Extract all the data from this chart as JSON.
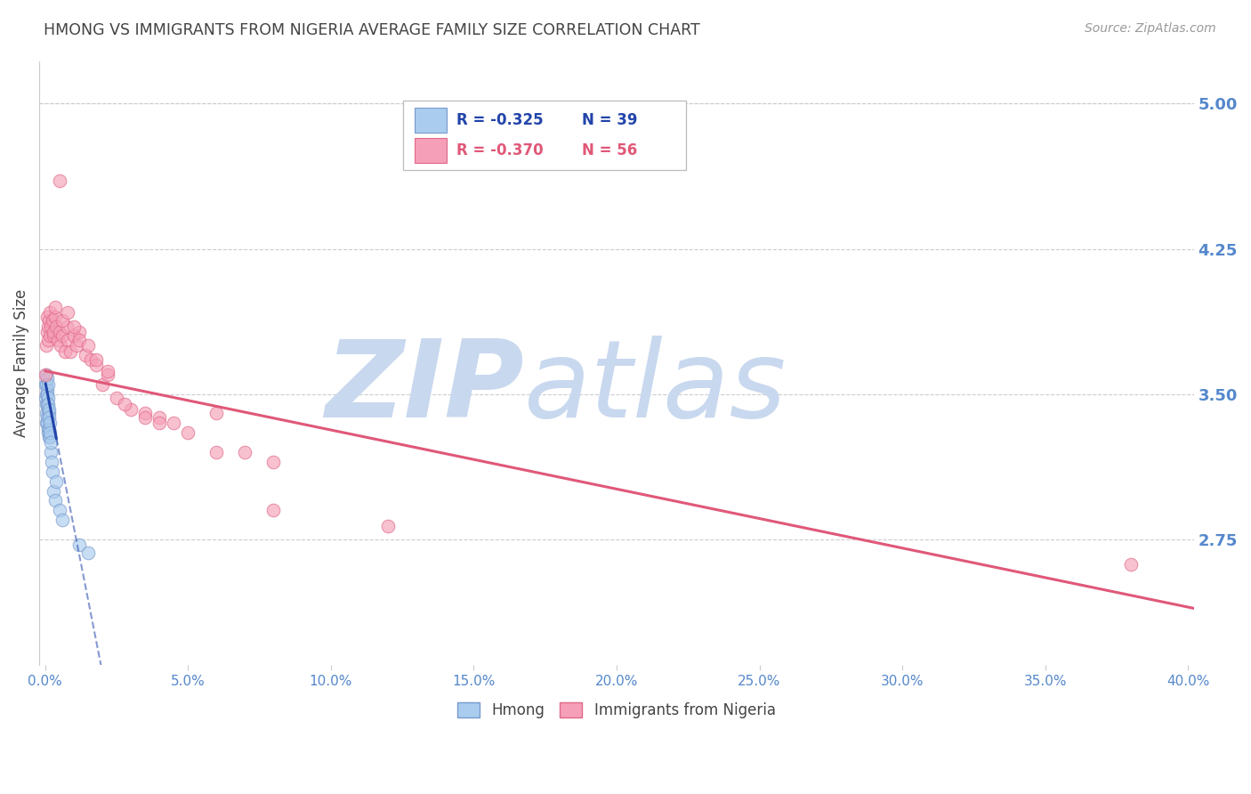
{
  "title": "HMONG VS IMMIGRANTS FROM NIGERIA AVERAGE FAMILY SIZE CORRELATION CHART",
  "source": "Source: ZipAtlas.com",
  "ylabel": "Average Family Size",
  "yticks_right": [
    2.75,
    3.5,
    4.25,
    5.0
  ],
  "xticks": [
    0.0,
    0.05,
    0.1,
    0.15,
    0.2,
    0.25,
    0.3,
    0.35,
    0.4
  ],
  "xlim": [
    -0.002,
    0.402
  ],
  "ylim": [
    2.1,
    5.22
  ],
  "hmong_color": "#aaccee",
  "hmong_edge_color": "#7799cc",
  "nigeria_color": "#f5a0b8",
  "nigeria_edge_color": "#e06888",
  "trend_hmong_color": "#2244aa",
  "trend_nigeria_color": "#e05878",
  "watermark_zip_color": "#c8d8ee",
  "watermark_atlas_color": "#c8d8ee",
  "watermark_text_zip": "ZIP",
  "watermark_text_atlas": "atlas",
  "legend_R_hmong": "R = -0.325",
  "legend_N_hmong": "N = 39",
  "legend_R_nigeria": "R = -0.370",
  "legend_N_nigeria": "N = 56",
  "legend_label_hmong": "Hmong",
  "legend_label_nigeria": "Immigrants from Nigeria",
  "hmong_x": [
    0.0002,
    0.0003,
    0.0004,
    0.0004,
    0.0005,
    0.0005,
    0.0006,
    0.0006,
    0.0007,
    0.0007,
    0.0008,
    0.0008,
    0.0009,
    0.0009,
    0.001,
    0.001,
    0.0011,
    0.0011,
    0.0012,
    0.0012,
    0.0013,
    0.0013,
    0.0014,
    0.0014,
    0.0015,
    0.0016,
    0.0017,
    0.0018,
    0.0019,
    0.002,
    0.0022,
    0.0025,
    0.003,
    0.0035,
    0.004,
    0.005,
    0.006,
    0.012,
    0.015
  ],
  "hmong_y": [
    3.55,
    3.48,
    3.6,
    3.5,
    3.45,
    3.35,
    3.55,
    3.4,
    3.52,
    3.38,
    3.58,
    3.45,
    3.5,
    3.35,
    3.55,
    3.42,
    3.48,
    3.32,
    3.45,
    3.3,
    3.4,
    3.28,
    3.42,
    3.32,
    3.38,
    3.35,
    3.28,
    3.3,
    3.2,
    3.25,
    3.15,
    3.1,
    3.0,
    2.95,
    3.05,
    2.9,
    2.85,
    2.72,
    2.68
  ],
  "nigeria_x": [
    0.0003,
    0.0005,
    0.0007,
    0.0008,
    0.001,
    0.0012,
    0.0014,
    0.0016,
    0.0018,
    0.002,
    0.0025,
    0.0028,
    0.003,
    0.0035,
    0.004,
    0.0045,
    0.005,
    0.0055,
    0.006,
    0.007,
    0.0075,
    0.008,
    0.009,
    0.01,
    0.011,
    0.012,
    0.014,
    0.016,
    0.018,
    0.02,
    0.022,
    0.025,
    0.03,
    0.035,
    0.04,
    0.045,
    0.05,
    0.06,
    0.07,
    0.08,
    0.0035,
    0.006,
    0.008,
    0.01,
    0.012,
    0.015,
    0.018,
    0.022,
    0.028,
    0.035,
    0.06,
    0.12,
    0.04,
    0.08,
    0.38,
    0.005
  ],
  "nigeria_y": [
    3.6,
    3.75,
    3.9,
    3.82,
    3.85,
    3.78,
    3.88,
    3.8,
    3.92,
    3.85,
    3.88,
    3.8,
    3.82,
    3.9,
    3.85,
    3.78,
    3.82,
    3.75,
    3.8,
    3.72,
    3.85,
    3.78,
    3.72,
    3.8,
    3.75,
    3.82,
    3.7,
    3.68,
    3.65,
    3.55,
    3.6,
    3.48,
    3.42,
    3.4,
    3.38,
    3.35,
    3.3,
    3.4,
    3.2,
    3.15,
    3.95,
    3.88,
    3.92,
    3.85,
    3.78,
    3.75,
    3.68,
    3.62,
    3.45,
    3.38,
    3.2,
    2.82,
    3.35,
    2.9,
    2.62,
    4.6
  ],
  "marker_size": 110,
  "marker_alpha": 0.65,
  "background_color": "#ffffff",
  "grid_color": "#cccccc",
  "title_color": "#444444",
  "right_axis_color": "#5588cc",
  "hmong_trend_x0": 0.0002,
  "hmong_trend_x_solid_end": 0.004,
  "hmong_trend_x_dash_end": 0.12,
  "hmong_trend_intercept": 3.57,
  "hmong_trend_slope": -75.0,
  "nigeria_trend_x0": 0.0,
  "nigeria_trend_x1": 0.402,
  "nigeria_trend_intercept": 3.62,
  "nigeria_trend_slope": -3.05
}
